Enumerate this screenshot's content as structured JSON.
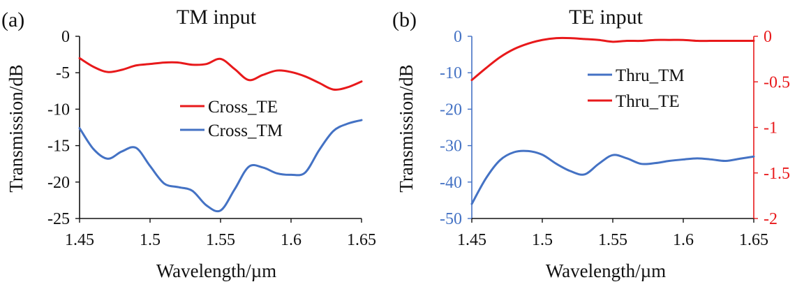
{
  "colors": {
    "red": "#e8191b",
    "blue": "#4472c4",
    "axis": "#111111"
  },
  "chart_data": [
    {
      "type": "line",
      "panel_label": "(a)",
      "title": "TM input",
      "xlabel": "Wavelength/µm",
      "ylabel": "Transmission/dB",
      "xlim": [
        1.45,
        1.65
      ],
      "ylim": [
        -25,
        0
      ],
      "xticks": [
        "1.45",
        "1.5",
        "1.55",
        "1.6",
        "1.65"
      ],
      "yticks": [
        "0",
        "-5",
        "-10",
        "-15",
        "-20",
        "-25"
      ],
      "legend": "center-right",
      "series": [
        {
          "name": "Cross_TE",
          "color": "#e8191b",
          "x": [
            1.45,
            1.46,
            1.47,
            1.48,
            1.49,
            1.5,
            1.51,
            1.52,
            1.53,
            1.54,
            1.55,
            1.56,
            1.57,
            1.58,
            1.59,
            1.6,
            1.61,
            1.62,
            1.63,
            1.64,
            1.65
          ],
          "y": [
            -3.0,
            -4.2,
            -4.9,
            -4.6,
            -4.0,
            -3.8,
            -3.6,
            -3.6,
            -3.9,
            -3.8,
            -3.1,
            -4.5,
            -6.0,
            -5.3,
            -4.7,
            -4.9,
            -5.5,
            -6.4,
            -7.3,
            -7.0,
            -6.2
          ]
        },
        {
          "name": "Cross_TM",
          "color": "#4472c4",
          "x": [
            1.45,
            1.46,
            1.47,
            1.48,
            1.49,
            1.5,
            1.51,
            1.52,
            1.53,
            1.54,
            1.55,
            1.56,
            1.57,
            1.58,
            1.59,
            1.6,
            1.61,
            1.62,
            1.63,
            1.64,
            1.65
          ],
          "y": [
            -12.6,
            -15.5,
            -16.8,
            -15.8,
            -15.3,
            -17.8,
            -20.2,
            -20.7,
            -21.2,
            -23.2,
            -23.9,
            -21.0,
            -17.9,
            -18.0,
            -18.8,
            -19.0,
            -18.7,
            -15.6,
            -13.0,
            -12.0,
            -11.5
          ]
        }
      ]
    },
    {
      "type": "line",
      "panel_label": "(b)",
      "title": "TE input",
      "xlabel": "Wavelength/µm",
      "ylabel": "Transmission/dB",
      "xlim": [
        1.45,
        1.65
      ],
      "ylim_left": [
        -50,
        0
      ],
      "ylim_right": [
        -2,
        0
      ],
      "xticks": [
        "1.45",
        "1.5",
        "1.55",
        "1.6",
        "1.65"
      ],
      "yticks_left": [
        "0",
        "-10",
        "-20",
        "-30",
        "-40",
        "-50"
      ],
      "yticks_right": [
        "0",
        "-0.5",
        "-1",
        "-1.5",
        "-2"
      ],
      "legend": "top-right",
      "series": [
        {
          "name": "Thru_TM",
          "axis": "left",
          "color": "#4472c4",
          "x": [
            1.45,
            1.46,
            1.47,
            1.48,
            1.49,
            1.5,
            1.51,
            1.52,
            1.53,
            1.54,
            1.55,
            1.56,
            1.57,
            1.58,
            1.59,
            1.6,
            1.61,
            1.62,
            1.63,
            1.64,
            1.65
          ],
          "y": [
            -46.0,
            -39.0,
            -34.0,
            -31.8,
            -31.5,
            -32.5,
            -35.0,
            -37.0,
            -37.9,
            -35.0,
            -32.6,
            -33.5,
            -35.0,
            -34.8,
            -34.2,
            -33.8,
            -33.5,
            -33.8,
            -34.2,
            -33.6,
            -33.0
          ]
        },
        {
          "name": "Thru_TE",
          "axis": "right",
          "color": "#e8191b",
          "x": [
            1.45,
            1.46,
            1.47,
            1.48,
            1.49,
            1.5,
            1.51,
            1.52,
            1.53,
            1.54,
            1.55,
            1.56,
            1.57,
            1.58,
            1.59,
            1.6,
            1.61,
            1.62,
            1.63,
            1.64,
            1.65
          ],
          "y": [
            -0.48,
            -0.35,
            -0.23,
            -0.14,
            -0.08,
            -0.04,
            -0.02,
            -0.02,
            -0.03,
            -0.04,
            -0.06,
            -0.05,
            -0.05,
            -0.04,
            -0.04,
            -0.04,
            -0.05,
            -0.05,
            -0.05,
            -0.05,
            -0.05
          ]
        }
      ]
    }
  ]
}
